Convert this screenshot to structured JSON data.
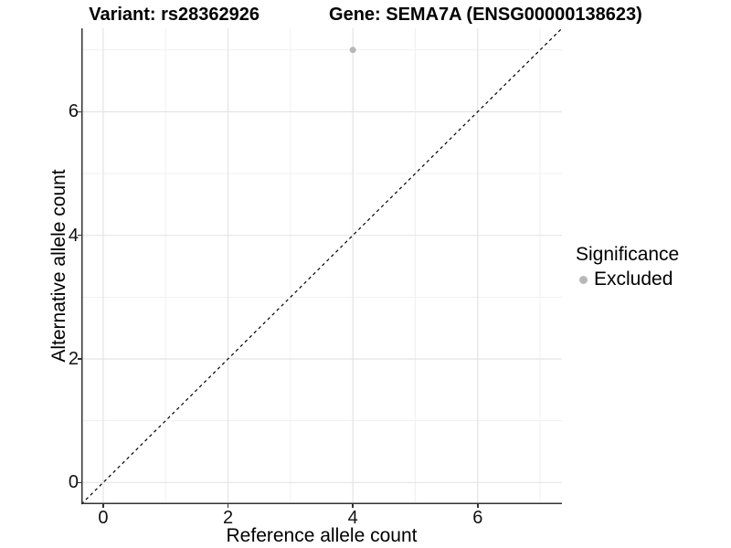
{
  "chart_data": {
    "type": "scatter",
    "title_left": "Variant: rs28362926",
    "title_right": "Gene: SEMA7A (ENSG00000138623)",
    "xlabel": "Reference allele count",
    "ylabel": "Alternative allele count",
    "xlim": [
      -0.35,
      7.35
    ],
    "ylim": [
      -0.35,
      7.35
    ],
    "x_ticks": {
      "major": [
        0,
        2,
        4,
        6
      ],
      "minor": [
        1,
        3,
        5,
        7
      ]
    },
    "y_ticks": {
      "major": [
        0,
        2,
        4,
        6
      ],
      "minor": [
        1,
        3,
        5,
        7
      ]
    },
    "grid": true,
    "points": [
      {
        "x": 4,
        "y": 7,
        "series": "Excluded"
      }
    ],
    "identity_line": {
      "equation": "y = x",
      "style": "dashed"
    },
    "legend": {
      "title": "Significance",
      "position": "right",
      "items": [
        {
          "label": "Excluded",
          "color": "#b8b8b8"
        }
      ]
    },
    "colors": {
      "point": "#b8b8b8",
      "grid_major": "#e4e4e4",
      "grid_minor": "#f1f1f1",
      "axis_line": "#333333",
      "identity_line": "#000000",
      "text": "#000000"
    }
  }
}
